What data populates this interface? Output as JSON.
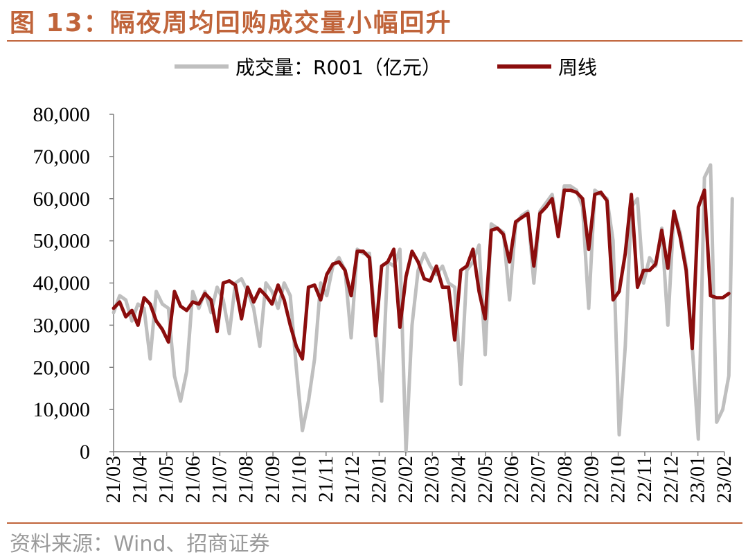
{
  "figure": {
    "title": "图 13：隔夜周均回购成交量小幅回升",
    "source": "资料来源：Wind、招商证券"
  },
  "chart_data": {
    "type": "line",
    "grid": false,
    "legend_placement": "top-center",
    "ylim": [
      0,
      80000
    ],
    "y_ticks": [
      "80,000",
      "70,000",
      "60,000",
      "50,000",
      "40,000",
      "30,000",
      "20,000",
      "10,000",
      "0"
    ],
    "x_ticks": [
      "21/03",
      "21/04",
      "21/05",
      "21/06",
      "21/07",
      "21/08",
      "21/09",
      "21/10",
      "21/11",
      "21/12",
      "22/01",
      "22/02",
      "22/03",
      "22/04",
      "22/05",
      "22/06",
      "22/07",
      "22/08",
      "22/09",
      "22/10",
      "22/11",
      "22/12",
      "23/01",
      "23/02"
    ],
    "x_range": [
      "2021-03-01",
      "2023-02-01"
    ],
    "series": [
      {
        "name": "成交量：R001（亿元）",
        "color": "#BFBFBF",
        "points": [
          [
            "2021-03-01",
            33000
          ],
          [
            "2021-03-08",
            37000
          ],
          [
            "2021-03-15",
            36000
          ],
          [
            "2021-03-22",
            31000
          ],
          [
            "2021-03-29",
            35000
          ],
          [
            "2021-04-05",
            34000
          ],
          [
            "2021-04-12",
            22000
          ],
          [
            "2021-04-19",
            38000
          ],
          [
            "2021-04-26",
            35000
          ],
          [
            "2021-05-03",
            34000
          ],
          [
            "2021-05-10",
            18000
          ],
          [
            "2021-05-17",
            12000
          ],
          [
            "2021-05-24",
            19000
          ],
          [
            "2021-05-31",
            38000
          ],
          [
            "2021-06-07",
            34000
          ],
          [
            "2021-06-14",
            38000
          ],
          [
            "2021-06-21",
            33000
          ],
          [
            "2021-06-28",
            39000
          ],
          [
            "2021-07-05",
            36000
          ],
          [
            "2021-07-12",
            28000
          ],
          [
            "2021-07-19",
            40000
          ],
          [
            "2021-07-26",
            41000
          ],
          [
            "2021-08-02",
            38000
          ],
          [
            "2021-08-09",
            34000
          ],
          [
            "2021-08-16",
            25000
          ],
          [
            "2021-08-23",
            40000
          ],
          [
            "2021-08-30",
            38000
          ],
          [
            "2021-09-06",
            34000
          ],
          [
            "2021-09-13",
            40000
          ],
          [
            "2021-09-20",
            37000
          ],
          [
            "2021-09-27",
            20000
          ],
          [
            "2021-10-04",
            5000
          ],
          [
            "2021-10-11",
            12000
          ],
          [
            "2021-10-18",
            22000
          ],
          [
            "2021-10-25",
            40000
          ],
          [
            "2021-11-01",
            37000
          ],
          [
            "2021-11-08",
            44000
          ],
          [
            "2021-11-15",
            46000
          ],
          [
            "2021-11-22",
            43000
          ],
          [
            "2021-11-29",
            27000
          ],
          [
            "2021-12-06",
            48000
          ],
          [
            "2021-12-13",
            47000
          ],
          [
            "2021-12-20",
            47000
          ],
          [
            "2021-12-27",
            30000
          ],
          [
            "2022-01-03",
            12000
          ],
          [
            "2022-01-10",
            45000
          ],
          [
            "2022-01-17",
            44000
          ],
          [
            "2022-01-24",
            48000
          ],
          [
            "2022-01-31",
            0
          ],
          [
            "2022-02-07",
            30000
          ],
          [
            "2022-02-14",
            43000
          ],
          [
            "2022-02-21",
            47000
          ],
          [
            "2022-02-28",
            44000
          ],
          [
            "2022-03-07",
            42000
          ],
          [
            "2022-03-14",
            44000
          ],
          [
            "2022-03-21",
            40000
          ],
          [
            "2022-03-28",
            39000
          ],
          [
            "2022-04-04",
            16000
          ],
          [
            "2022-04-11",
            43000
          ],
          [
            "2022-04-18",
            45000
          ],
          [
            "2022-04-25",
            49000
          ],
          [
            "2022-05-02",
            23000
          ],
          [
            "2022-05-09",
            54000
          ],
          [
            "2022-05-16",
            53000
          ],
          [
            "2022-05-23",
            52000
          ],
          [
            "2022-05-30",
            36000
          ],
          [
            "2022-06-06",
            54000
          ],
          [
            "2022-06-13",
            56000
          ],
          [
            "2022-06-20",
            57000
          ],
          [
            "2022-06-27",
            40000
          ],
          [
            "2022-07-04",
            57000
          ],
          [
            "2022-07-11",
            59000
          ],
          [
            "2022-07-18",
            61000
          ],
          [
            "2022-07-25",
            52000
          ],
          [
            "2022-08-01",
            63000
          ],
          [
            "2022-08-08",
            63000
          ],
          [
            "2022-08-15",
            62000
          ],
          [
            "2022-08-22",
            58000
          ],
          [
            "2022-08-29",
            34000
          ],
          [
            "2022-09-05",
            62000
          ],
          [
            "2022-09-12",
            61000
          ],
          [
            "2022-09-19",
            60000
          ],
          [
            "2022-09-26",
            50000
          ],
          [
            "2022-10-03",
            4000
          ],
          [
            "2022-10-10",
            25000
          ],
          [
            "2022-10-17",
            58000
          ],
          [
            "2022-10-24",
            60000
          ],
          [
            "2022-10-31",
            40000
          ],
          [
            "2022-11-07",
            46000
          ],
          [
            "2022-11-14",
            44000
          ],
          [
            "2022-11-21",
            53000
          ],
          [
            "2022-11-28",
            30000
          ],
          [
            "2022-12-05",
            57000
          ],
          [
            "2022-12-12",
            52000
          ],
          [
            "2022-12-19",
            44000
          ],
          [
            "2022-12-26",
            25000
          ],
          [
            "2023-01-02",
            3000
          ],
          [
            "2023-01-09",
            65000
          ],
          [
            "2023-01-16",
            68000
          ],
          [
            "2023-01-23",
            7000
          ],
          [
            "2023-01-30",
            10000
          ],
          [
            "2023-02-06",
            18000
          ],
          [
            "2023-02-10",
            60000
          ]
        ]
      },
      {
        "name": "周线",
        "color": "#8B0D0D",
        "points": [
          [
            "2021-03-01",
            34000
          ],
          [
            "2021-03-08",
            35500
          ],
          [
            "2021-03-15",
            32000
          ],
          [
            "2021-03-22",
            33500
          ],
          [
            "2021-03-29",
            30000
          ],
          [
            "2021-04-05",
            36500
          ],
          [
            "2021-04-12",
            35000
          ],
          [
            "2021-04-19",
            31000
          ],
          [
            "2021-04-26",
            29000
          ],
          [
            "2021-05-03",
            26000
          ],
          [
            "2021-05-10",
            38000
          ],
          [
            "2021-05-17",
            34500
          ],
          [
            "2021-05-24",
            33500
          ],
          [
            "2021-05-31",
            35500
          ],
          [
            "2021-06-07",
            35000
          ],
          [
            "2021-06-14",
            37500
          ],
          [
            "2021-06-21",
            36000
          ],
          [
            "2021-06-28",
            28500
          ],
          [
            "2021-07-05",
            40000
          ],
          [
            "2021-07-12",
            40500
          ],
          [
            "2021-07-19",
            39500
          ],
          [
            "2021-07-26",
            31500
          ],
          [
            "2021-08-02",
            39000
          ],
          [
            "2021-08-09",
            35500
          ],
          [
            "2021-08-16",
            38500
          ],
          [
            "2021-08-23",
            37000
          ],
          [
            "2021-08-30",
            35000
          ],
          [
            "2021-09-06",
            39500
          ],
          [
            "2021-09-13",
            36000
          ],
          [
            "2021-09-20",
            30000
          ],
          [
            "2021-09-27",
            25000
          ],
          [
            "2021-10-04",
            22000
          ],
          [
            "2021-10-11",
            39000
          ],
          [
            "2021-10-18",
            39500
          ],
          [
            "2021-10-25",
            36000
          ],
          [
            "2021-11-01",
            42000
          ],
          [
            "2021-11-08",
            44500
          ],
          [
            "2021-11-15",
            45000
          ],
          [
            "2021-11-22",
            43000
          ],
          [
            "2021-11-29",
            37000
          ],
          [
            "2021-12-06",
            47500
          ],
          [
            "2021-12-13",
            47500
          ],
          [
            "2021-12-20",
            46000
          ],
          [
            "2021-12-27",
            27500
          ],
          [
            "2022-01-03",
            44000
          ],
          [
            "2022-01-10",
            45000
          ],
          [
            "2022-01-17",
            48000
          ],
          [
            "2022-01-24",
            29500
          ],
          [
            "2022-01-31",
            41500
          ],
          [
            "2022-02-07",
            47500
          ],
          [
            "2022-02-14",
            45000
          ],
          [
            "2022-02-21",
            41000
          ],
          [
            "2022-02-28",
            40500
          ],
          [
            "2022-03-07",
            44000
          ],
          [
            "2022-03-14",
            39000
          ],
          [
            "2022-03-21",
            39000
          ],
          [
            "2022-03-28",
            26500
          ],
          [
            "2022-04-04",
            43000
          ],
          [
            "2022-04-11",
            44000
          ],
          [
            "2022-04-18",
            48000
          ],
          [
            "2022-04-25",
            38000
          ],
          [
            "2022-05-02",
            31500
          ],
          [
            "2022-05-09",
            52500
          ],
          [
            "2022-05-16",
            53000
          ],
          [
            "2022-05-23",
            51500
          ],
          [
            "2022-05-30",
            45000
          ],
          [
            "2022-06-06",
            54500
          ],
          [
            "2022-06-13",
            55500
          ],
          [
            "2022-06-20",
            56500
          ],
          [
            "2022-06-27",
            44000
          ],
          [
            "2022-07-04",
            56500
          ],
          [
            "2022-07-11",
            58000
          ],
          [
            "2022-07-18",
            60000
          ],
          [
            "2022-07-25",
            51000
          ],
          [
            "2022-08-01",
            62000
          ],
          [
            "2022-08-08",
            62000
          ],
          [
            "2022-08-15",
            61500
          ],
          [
            "2022-08-22",
            60000
          ],
          [
            "2022-08-29",
            48000
          ],
          [
            "2022-09-05",
            61000
          ],
          [
            "2022-09-12",
            61500
          ],
          [
            "2022-09-19",
            59500
          ],
          [
            "2022-09-26",
            36000
          ],
          [
            "2022-10-03",
            38000
          ],
          [
            "2022-10-10",
            47000
          ],
          [
            "2022-10-17",
            61000
          ],
          [
            "2022-10-24",
            39000
          ],
          [
            "2022-10-31",
            43000
          ],
          [
            "2022-11-07",
            43000
          ],
          [
            "2022-11-14",
            44500
          ],
          [
            "2022-11-21",
            52500
          ],
          [
            "2022-11-28",
            43500
          ],
          [
            "2022-12-05",
            57000
          ],
          [
            "2022-12-12",
            51000
          ],
          [
            "2022-12-19",
            43000
          ],
          [
            "2022-12-26",
            24500
          ],
          [
            "2023-01-02",
            58000
          ],
          [
            "2023-01-09",
            62000
          ],
          [
            "2023-01-16",
            37000
          ],
          [
            "2023-01-23",
            36500
          ],
          [
            "2023-01-30",
            36500
          ],
          [
            "2023-02-06",
            37500
          ]
        ]
      }
    ]
  }
}
